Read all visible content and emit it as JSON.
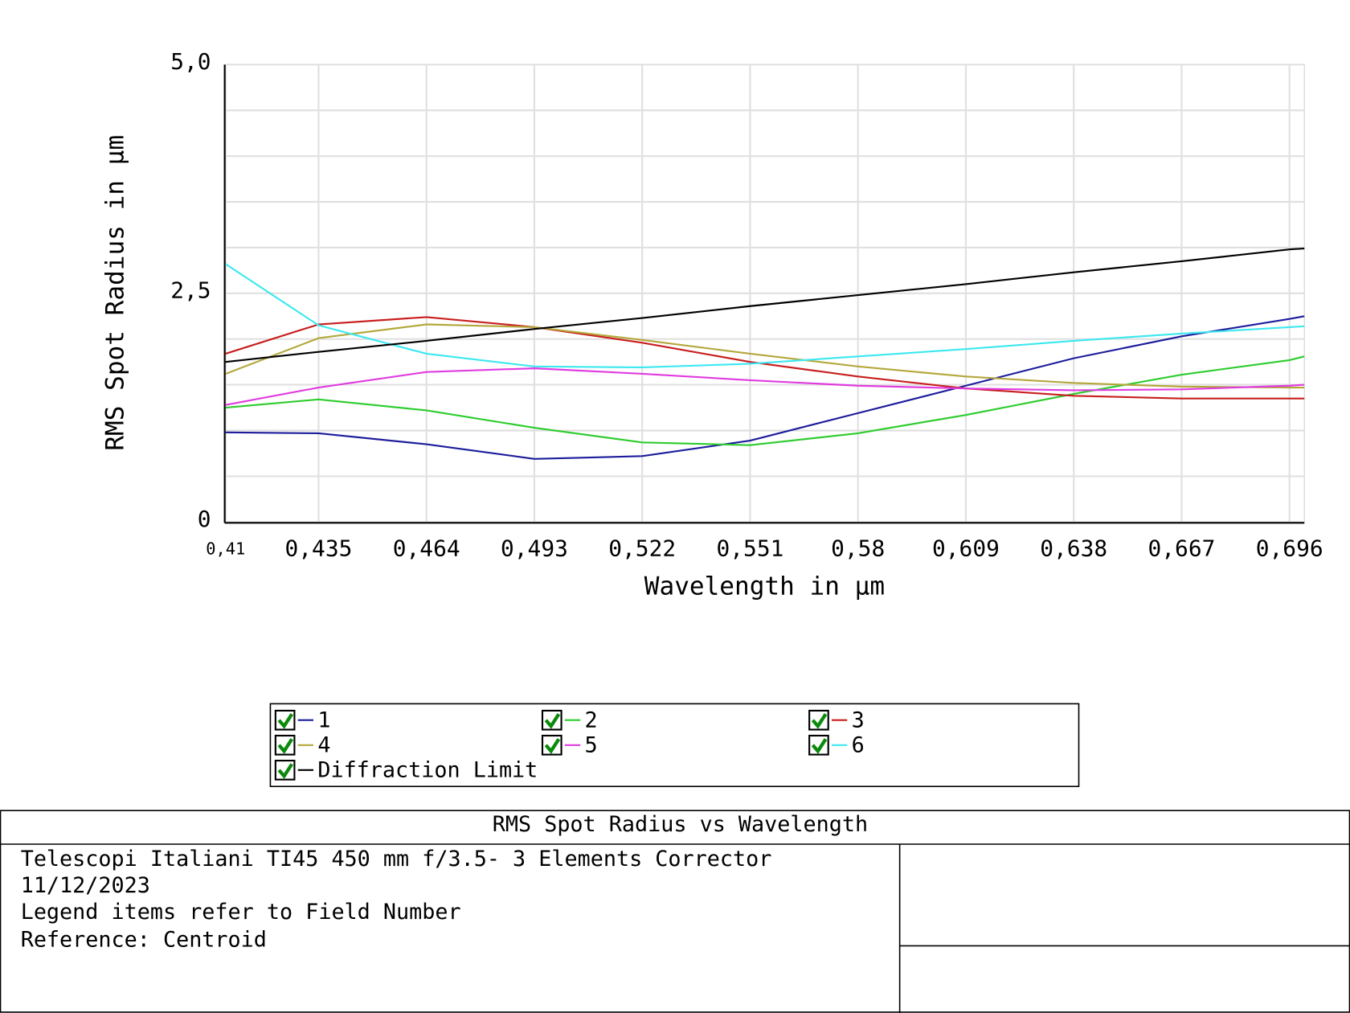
{
  "chart_data": {
    "type": "line",
    "title": "RMS Spot Radius vs Wavelength",
    "x_label": "Wavelength in µm",
    "y_label": "RMS Spot Radius in µm",
    "x": [
      0.41,
      0.435,
      0.464,
      0.493,
      0.522,
      0.551,
      0.58,
      0.609,
      0.638,
      0.667,
      0.696,
      0.7
    ],
    "xlim": [
      0.41,
      0.7
    ],
    "xticks": [
      {
        "value": 0.41,
        "label": "0,41"
      },
      {
        "value": 0.435,
        "label": "0,435"
      },
      {
        "value": 0.464,
        "label": "0,464"
      },
      {
        "value": 0.493,
        "label": "0,493"
      },
      {
        "value": 0.522,
        "label": "0,522"
      },
      {
        "value": 0.551,
        "label": "0,551"
      },
      {
        "value": 0.58,
        "label": "0,58"
      },
      {
        "value": 0.609,
        "label": "0,609"
      },
      {
        "value": 0.638,
        "label": "0,638"
      },
      {
        "value": 0.667,
        "label": "0,667"
      },
      {
        "value": 0.696,
        "label": "0,696"
      }
    ],
    "ylim": [
      0,
      5
    ],
    "yticks": [
      0,
      {
        "value": 0.5,
        "label": null
      },
      {
        "value": 1,
        "label": null
      },
      {
        "value": 1.5,
        "label": null
      },
      {
        "value": 2,
        "label": null
      },
      {
        "value": 2.5,
        "label": "2,5"
      },
      {
        "value": 3,
        "label": null
      },
      {
        "value": 3.5,
        "label": null
      },
      {
        "value": 4,
        "label": null
      },
      {
        "value": 4.5,
        "label": null
      },
      {
        "value": 5,
        "label": "5,0"
      }
    ],
    "grid": true,
    "series": [
      {
        "name": "1",
        "color": "#1c1c9c",
        "values": [
          0.98,
          0.97,
          0.85,
          0.69,
          0.72,
          0.89,
          1.19,
          1.49,
          1.79,
          2.03,
          2.22,
          2.25
        ]
      },
      {
        "name": "2",
        "color": "#2ecc2e",
        "values": [
          1.25,
          1.34,
          1.22,
          1.03,
          0.87,
          0.84,
          0.97,
          1.17,
          1.4,
          1.61,
          1.77,
          1.81
        ]
      },
      {
        "name": "3",
        "color": "#c81e1e",
        "values": [
          1.84,
          2.16,
          2.24,
          2.13,
          1.96,
          1.75,
          1.59,
          1.46,
          1.38,
          1.35,
          1.35,
          1.35
        ]
      },
      {
        "name": "4",
        "color": "#b4a83c",
        "values": [
          1.62,
          2.01,
          2.16,
          2.13,
          1.99,
          1.84,
          1.7,
          1.59,
          1.52,
          1.48,
          1.47,
          1.47
        ]
      },
      {
        "name": "5",
        "color": "#e03ce0",
        "values": [
          1.28,
          1.47,
          1.64,
          1.68,
          1.62,
          1.55,
          1.49,
          1.46,
          1.44,
          1.45,
          1.49,
          1.5
        ]
      },
      {
        "name": "6",
        "color": "#3ce8f0",
        "values": [
          2.82,
          2.15,
          1.84,
          1.7,
          1.69,
          1.73,
          1.81,
          1.89,
          1.98,
          2.06,
          2.13,
          2.14
        ]
      },
      {
        "name": "Diffraction Limit",
        "color": "#000000",
        "values": [
          1.75,
          1.86,
          1.98,
          2.11,
          2.23,
          2.36,
          2.48,
          2.6,
          2.73,
          2.85,
          2.98,
          2.99
        ]
      }
    ]
  },
  "footer": {
    "lines": [
      "Telescopi Italiani  TI45  450 mm f/3.5-  3 Elements Corrector",
      "11/12/2023",
      "Legend items refer to Field Number",
      "Reference: Centroid"
    ]
  }
}
